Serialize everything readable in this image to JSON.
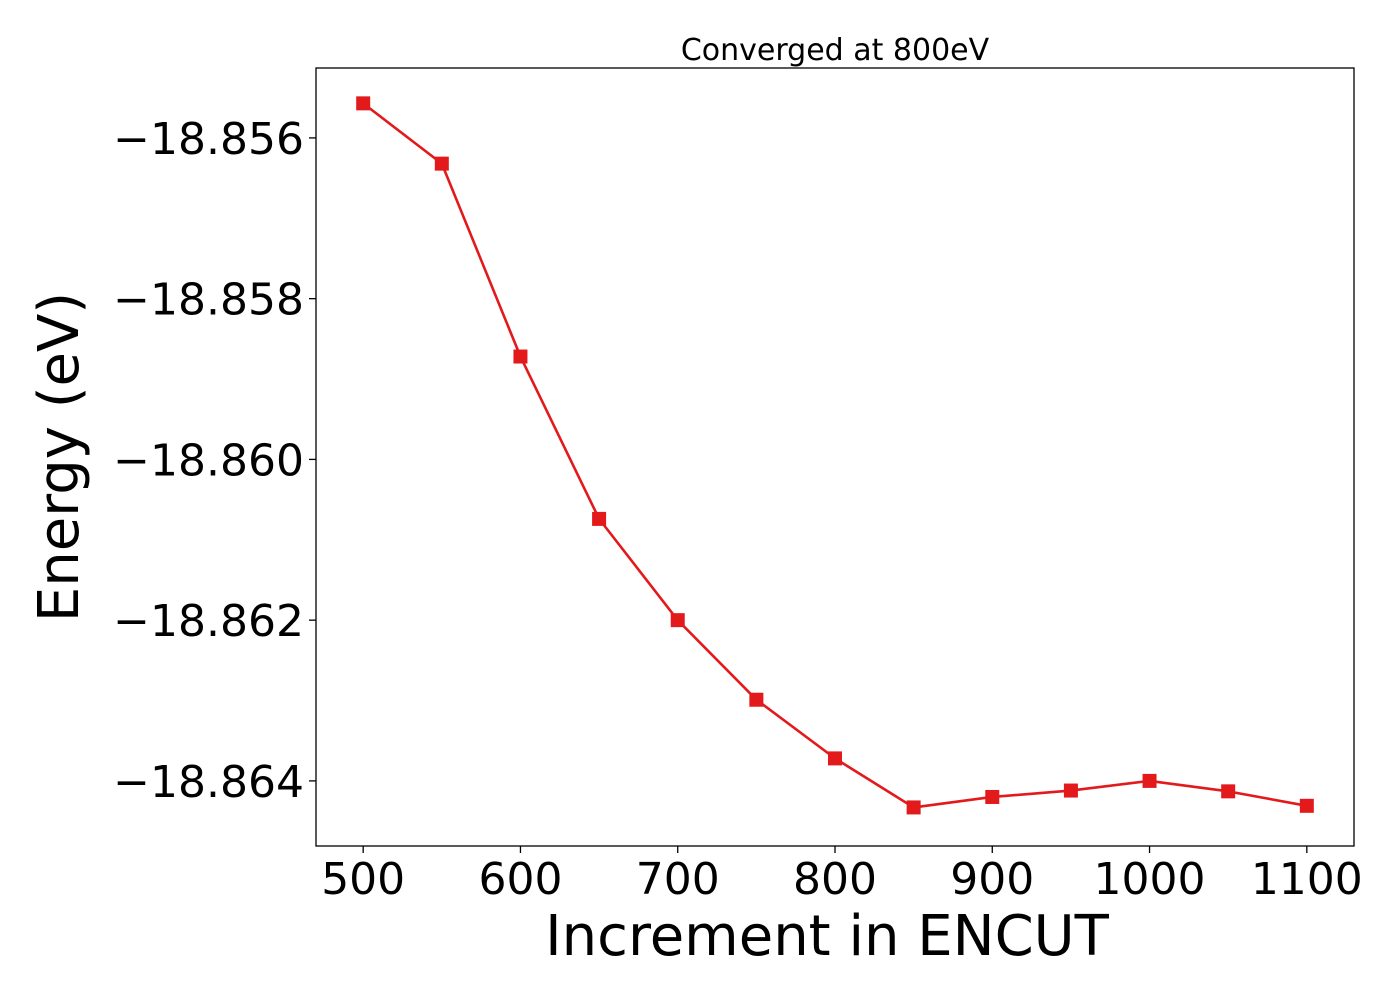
{
  "chart_data": {
    "type": "line",
    "title": "Converged at 800eV",
    "xlabel": "Increment in ENCUT",
    "ylabel": "Energy (eV)",
    "x": [
      500,
      550,
      600,
      650,
      700,
      750,
      800,
      850,
      900,
      950,
      1000,
      1050,
      1100
    ],
    "series": [
      {
        "values": [
          -18.85557,
          -18.85632,
          -18.85872,
          -18.86074,
          -18.862,
          -18.86299,
          -18.86372,
          -18.86433,
          -18.8642,
          -18.86412,
          -18.864,
          -18.86413,
          -18.86431
        ]
      }
    ],
    "xticks": [
      500,
      600,
      700,
      800,
      900,
      1000,
      1100
    ],
    "xtick_labels": [
      "500",
      "600",
      "700",
      "800",
      "900",
      "1000",
      "1100"
    ],
    "yticks": [
      -18.856,
      -18.858,
      -18.86,
      -18.862,
      -18.864
    ],
    "ytick_labels": [
      "−18.856",
      "−18.858",
      "−18.860",
      "−18.862",
      "−18.864"
    ],
    "xlim": [
      470,
      1130
    ],
    "ylim": [
      -18.86481,
      -18.85513
    ],
    "grid": false,
    "marker": "square",
    "color": "#e31a1c"
  }
}
